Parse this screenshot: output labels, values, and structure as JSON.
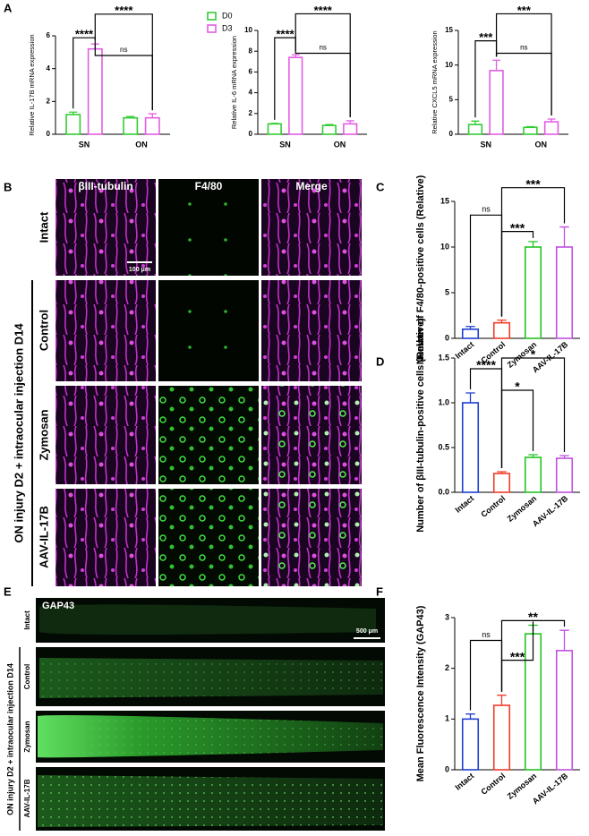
{
  "panel_labels": [
    "A",
    "B",
    "C",
    "D",
    "E",
    "F"
  ],
  "panel_b": {
    "columns": [
      "βIII-tubulin",
      "F4/80",
      "Merge"
    ],
    "rows": [
      "Intact",
      "Control",
      "Zymosan",
      "AAV-IL-17B"
    ],
    "group_label": "ON injury D2 + intraocular injection D14",
    "scale_bar": "100 μm"
  },
  "panel_e": {
    "stain": "GAP43",
    "rows": [
      "Intact",
      "Control",
      "Zymosan",
      "AAV-IL-17B"
    ],
    "group_label": "ON injury D2 + intraocular injection D14",
    "scale_bar": "500 μm"
  },
  "chart_data": [
    {
      "type": "bar",
      "y_label": "Relative IL-17B mRNA expression",
      "categories": [
        "SN",
        "ON"
      ],
      "series": [
        {
          "name": "D0",
          "color": "#33cc33",
          "values": [
            1.2,
            1.0
          ],
          "errors": [
            0.15,
            0.08
          ]
        },
        {
          "name": "D3",
          "color": "#e35de3",
          "values": [
            5.2,
            1.0
          ],
          "errors": [
            0.3,
            0.25
          ]
        }
      ],
      "ylim": [
        0,
        6
      ],
      "yticks": [
        0,
        2,
        4,
        6
      ],
      "legend": true,
      "annotations": [
        "****",
        "ns",
        "****"
      ]
    },
    {
      "type": "bar",
      "y_label": "Relative IL-6 mRNA expression",
      "categories": [
        "SN",
        "ON"
      ],
      "series": [
        {
          "color": "#33cc33",
          "values": [
            1.0,
            0.85
          ],
          "errors": [
            0.05,
            0.08
          ]
        },
        {
          "color": "#e35de3",
          "values": [
            7.4,
            1.0
          ],
          "errors": [
            0.25,
            0.3
          ]
        }
      ],
      "ylim": [
        0,
        10
      ],
      "yticks": [
        0,
        2,
        4,
        6,
        8,
        10
      ],
      "annotations": [
        "****",
        "ns",
        "****"
      ]
    },
    {
      "type": "bar",
      "y_label": "Relative CXCL5 mRNA expression",
      "categories": [
        "SN",
        "ON"
      ],
      "series": [
        {
          "color": "#33cc33",
          "values": [
            1.4,
            1.0
          ],
          "errors": [
            0.5,
            0.1
          ]
        },
        {
          "color": "#e35de3",
          "values": [
            9.2,
            1.8
          ],
          "errors": [
            1.5,
            0.4
          ]
        }
      ],
      "ylim": [
        0,
        15
      ],
      "yticks": [
        0,
        5,
        10,
        15
      ],
      "annotations": [
        "***",
        "ns",
        "***"
      ]
    },
    {
      "type": "bar",
      "y_label": "Number of F4/80-positive cells (Relative)",
      "categories": [
        "Intact",
        "Control",
        "Zymosan",
        "AAV-IL-17B"
      ],
      "values": [
        1.0,
        1.7,
        10.0,
        10.0
      ],
      "errors": [
        0.3,
        0.3,
        0.6,
        2.2
      ],
      "colors": [
        "#1f3fd0",
        "#f03c28",
        "#22c322",
        "#c050e0"
      ],
      "ylim": [
        0,
        15
      ],
      "yticks": [
        0,
        5,
        10,
        15
      ],
      "annotations": [
        "ns",
        "***",
        "***"
      ]
    },
    {
      "type": "bar",
      "y_label": "Number of βIII-tubulin-positive cells (Relative)",
      "categories": [
        "Intact",
        "Control",
        "Zymosan",
        "AAV-IL-17B"
      ],
      "values": [
        1.0,
        0.21,
        0.39,
        0.38
      ],
      "errors": [
        0.11,
        0.02,
        0.03,
        0.03
      ],
      "colors": [
        "#1f3fd0",
        "#f03c28",
        "#22c322",
        "#c050e0"
      ],
      "ylim": [
        0,
        1.5
      ],
      "yticks": [
        {
          "value": 0,
          "label": "0.0"
        },
        0.5,
        {
          "value": 1,
          "label": "1.0"
        },
        1.5
      ],
      "annotations": [
        "****",
        "*",
        "*"
      ]
    },
    {
      "type": "bar",
      "y_label": "Mean Fluorescence Intensity (GAP43)",
      "categories": [
        "Intact",
        "Control",
        "Zymosan",
        "AAV-IL-17B"
      ],
      "values": [
        1.0,
        1.27,
        2.68,
        2.35
      ],
      "errors": [
        0.1,
        0.2,
        0.17,
        0.4
      ],
      "colors": [
        "#1f3fd0",
        "#f03c28",
        "#22c322",
        "#c050e0"
      ],
      "ylim": [
        0,
        3
      ],
      "yticks": [
        0,
        1,
        2,
        3
      ],
      "annotations": [
        "ns",
        "***",
        "**"
      ]
    }
  ]
}
